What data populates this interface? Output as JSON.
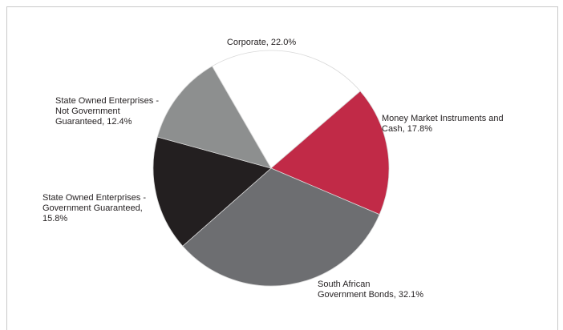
{
  "chart_data": {
    "type": "pie",
    "title": "",
    "start_angle_deg": 330,
    "direction": "clockwise",
    "slices": [
      {
        "name": "Corporate",
        "value": 22.0,
        "color": "#ffffff",
        "label_lines": [
          "Corporate, 22.0%"
        ]
      },
      {
        "name": "Money Market Instruments and Cash",
        "value": 17.8,
        "color": "#c12a47",
        "label_lines": [
          "Money Market Instruments and",
          "Cash, 17.8%"
        ]
      },
      {
        "name": "South African Government Bonds",
        "value": 32.1,
        "color": "#6d6e71",
        "label_lines": [
          "South African",
          "Government Bonds, 32.1%"
        ]
      },
      {
        "name": "State Owned Enterprises - Government Guaranteed",
        "value": 15.8,
        "color": "#231f20",
        "label_lines": [
          "State Owned Enterprises -",
          "Government Guaranteed,",
          "15.8%"
        ]
      },
      {
        "name": "State Owned Enterprises - Not Government Guaranteed",
        "value": 12.4,
        "color": "#8d8f8f",
        "label_lines": [
          "State Owned Enterprises -",
          "Not Government",
          "Guaranteed, 12.4%"
        ]
      }
    ]
  }
}
